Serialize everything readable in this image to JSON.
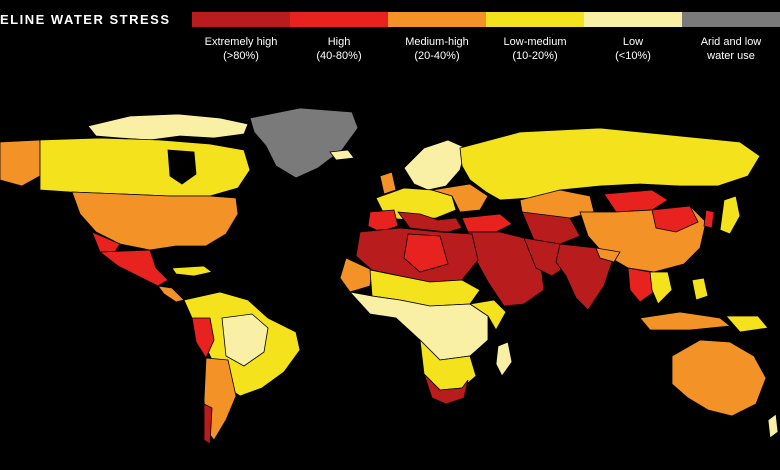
{
  "title": "ELINE WATER STRESS",
  "legend": {
    "items": [
      {
        "label": "Extremely high",
        "range": "(>80%)",
        "color": "#b81c1c"
      },
      {
        "label": "High",
        "range": "(40-80%)",
        "color": "#e8221e"
      },
      {
        "label": "Medium-high",
        "range": "(20-40%)",
        "color": "#f39226"
      },
      {
        "label": "Low-medium",
        "range": "(10-20%)",
        "color": "#f3e21c"
      },
      {
        "label": "Low",
        "range": "(<10%)",
        "color": "#f9f0a6"
      },
      {
        "label": "Arid and low",
        "range": "water use",
        "color": "#7a7a7a"
      }
    ]
  },
  "colors": {
    "background": "#000000",
    "border": "#000000"
  }
}
